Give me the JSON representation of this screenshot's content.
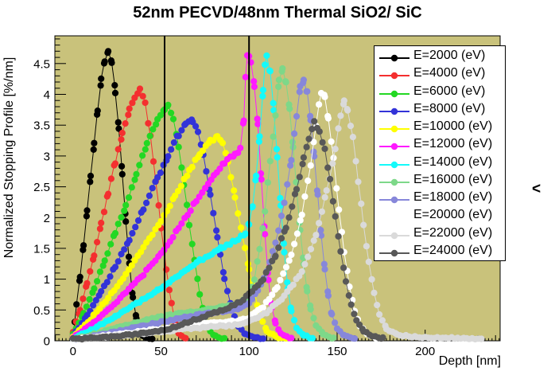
{
  "page": {
    "background": "#ffffff"
  },
  "title": "52nm PECVD/48nm Thermal SiO2/ SiC",
  "side_glyph": "<",
  "chart_data": {
    "type": "line",
    "title": "52nm PECVD/48nm Thermal SiO2/ SiC",
    "xlabel": "Depth [nm]",
    "ylabel": "Normalized Stopping Profile [%/nm]",
    "xlim": [
      -10.3,
      242.6
    ],
    "ylim": [
      0,
      4.95
    ],
    "x_major_ticks": [
      0,
      50,
      100,
      150,
      200
    ],
    "y_major_ticks": [
      0,
      0.5,
      1,
      1.5,
      2,
      2.5,
      3,
      3.5,
      4,
      4.5
    ],
    "x_minor_step": 10,
    "x_fine_step": 2,
    "y_minor_step": 0.1,
    "grid": false,
    "plot_bg": "#c9c27b",
    "frame_color": "#000000",
    "legend_position": "top-right",
    "marker": "filled-circle",
    "marker_diameter_px": 8,
    "vertical_lines": [
      52,
      100
    ],
    "series": [
      {
        "name": "E=2000 (eV)",
        "energy_eV": 2000,
        "color": "#000000",
        "points": [
          [
            0,
            0.05
          ],
          [
            1,
            0.3
          ],
          [
            2,
            0.6
          ],
          [
            4,
            1.05
          ],
          [
            6,
            1.55
          ],
          [
            8,
            2.1
          ],
          [
            10,
            2.65
          ],
          [
            12,
            3.2
          ],
          [
            14,
            3.75
          ],
          [
            16,
            4.25
          ],
          [
            18,
            4.55
          ],
          [
            20,
            4.72
          ],
          [
            22,
            4.5
          ],
          [
            24,
            4.05
          ],
          [
            26,
            3.45
          ],
          [
            28,
            2.7
          ],
          [
            30,
            1.95
          ],
          [
            32,
            1.25
          ],
          [
            34,
            0.7
          ],
          [
            36,
            0.35
          ],
          [
            38,
            0.15
          ],
          [
            40,
            0.07
          ],
          [
            45,
            0.03
          ]
        ]
      },
      {
        "name": "E=4000 (eV)",
        "energy_eV": 4000,
        "color": "#f42f2f",
        "points": [
          [
            0,
            0.15
          ],
          [
            4,
            0.5
          ],
          [
            8,
            0.95
          ],
          [
            12,
            1.4
          ],
          [
            16,
            1.9
          ],
          [
            20,
            2.4
          ],
          [
            24,
            2.9
          ],
          [
            28,
            3.35
          ],
          [
            32,
            3.75
          ],
          [
            35,
            3.95
          ],
          [
            38,
            4.06
          ],
          [
            41,
            3.85
          ],
          [
            44,
            3.3
          ],
          [
            47,
            2.6
          ],
          [
            50,
            1.85
          ],
          [
            53,
            1.15
          ],
          [
            56,
            0.6
          ],
          [
            58,
            0.3
          ],
          [
            60,
            0.12
          ],
          [
            64,
            0.04
          ]
        ]
      },
      {
        "name": "E=6000 (eV)",
        "energy_eV": 6000,
        "color": "#23d823",
        "points": [
          [
            0,
            0.1
          ],
          [
            6,
            0.45
          ],
          [
            12,
            0.85
          ],
          [
            18,
            1.3
          ],
          [
            24,
            1.75
          ],
          [
            30,
            2.2
          ],
          [
            36,
            2.7
          ],
          [
            42,
            3.2
          ],
          [
            48,
            3.6
          ],
          [
            52,
            3.76
          ],
          [
            54,
            3.8
          ],
          [
            57,
            3.6
          ],
          [
            60,
            3.15
          ],
          [
            63,
            2.55
          ],
          [
            66,
            1.9
          ],
          [
            69,
            1.3
          ],
          [
            72,
            0.75
          ],
          [
            75,
            0.38
          ],
          [
            78,
            0.16
          ],
          [
            81,
            0.07
          ],
          [
            86,
            0.03
          ]
        ]
      },
      {
        "name": "E=8000 (eV)",
        "energy_eV": 8000,
        "color": "#3333d8",
        "points": [
          [
            0,
            0.08
          ],
          [
            8,
            0.4
          ],
          [
            16,
            0.8
          ],
          [
            24,
            1.2
          ],
          [
            32,
            1.65
          ],
          [
            40,
            2.15
          ],
          [
            48,
            2.65
          ],
          [
            54,
            3.0
          ],
          [
            60,
            3.35
          ],
          [
            64,
            3.52
          ],
          [
            68,
            3.58
          ],
          [
            71,
            3.42
          ],
          [
            74,
            3.0
          ],
          [
            78,
            2.38
          ],
          [
            82,
            1.68
          ],
          [
            86,
            1.02
          ],
          [
            90,
            0.52
          ],
          [
            94,
            0.24
          ],
          [
            98,
            0.1
          ],
          [
            103,
            0.05
          ],
          [
            108,
            0.03
          ]
        ]
      },
      {
        "name": "E=10000 (eV)",
        "energy_eV": 10000,
        "color": "#ffff00",
        "points": [
          [
            0,
            0.06
          ],
          [
            10,
            0.35
          ],
          [
            20,
            0.7
          ],
          [
            30,
            1.08
          ],
          [
            40,
            1.5
          ],
          [
            50,
            1.95
          ],
          [
            58,
            2.35
          ],
          [
            66,
            2.75
          ],
          [
            72,
            3.05
          ],
          [
            78,
            3.25
          ],
          [
            82,
            3.32
          ],
          [
            85,
            3.2
          ],
          [
            88,
            2.9
          ],
          [
            92,
            2.35
          ],
          [
            96,
            1.72
          ],
          [
            100,
            1.18
          ],
          [
            103,
            0.78
          ],
          [
            106,
            0.42
          ],
          [
            110,
            0.16
          ],
          [
            115,
            0.07
          ],
          [
            121,
            0.03
          ]
        ]
      },
      {
        "name": "E=12000 (eV)",
        "energy_eV": 12000,
        "color": "#ff1aff",
        "points": [
          [
            0,
            0.05
          ],
          [
            10,
            0.25
          ],
          [
            20,
            0.5
          ],
          [
            30,
            0.78
          ],
          [
            40,
            1.08
          ],
          [
            50,
            1.42
          ],
          [
            60,
            1.82
          ],
          [
            70,
            2.28
          ],
          [
            80,
            2.7
          ],
          [
            86,
            2.9
          ],
          [
            92,
            3.02
          ],
          [
            95,
            3.12
          ],
          [
            97,
            3.6
          ],
          [
            98,
            4.3
          ],
          [
            99,
            4.66
          ],
          [
            100,
            4.62
          ],
          [
            101,
            4.5
          ],
          [
            103,
            4.15
          ],
          [
            105,
            3.5
          ],
          [
            107,
            2.6
          ],
          [
            109,
            1.72
          ],
          [
            111,
            1.0
          ],
          [
            113,
            0.55
          ],
          [
            115,
            0.28
          ],
          [
            118,
            0.12
          ],
          [
            124,
            0.04
          ]
        ]
      },
      {
        "name": "E=14000 (eV)",
        "energy_eV": 14000,
        "color": "#14fafa",
        "points": [
          [
            0,
            0.04
          ],
          [
            12,
            0.2
          ],
          [
            24,
            0.4
          ],
          [
            36,
            0.6
          ],
          [
            48,
            0.82
          ],
          [
            60,
            1.05
          ],
          [
            72,
            1.3
          ],
          [
            84,
            1.5
          ],
          [
            92,
            1.62
          ],
          [
            98,
            1.75
          ],
          [
            100,
            1.9
          ],
          [
            102,
            2.2
          ],
          [
            104,
            2.7
          ],
          [
            106,
            3.3
          ],
          [
            108,
            4.1
          ],
          [
            109,
            4.5
          ],
          [
            110,
            4.62
          ],
          [
            112,
            4.35
          ],
          [
            114,
            3.75
          ],
          [
            116,
            3.0
          ],
          [
            118,
            2.2
          ],
          [
            120,
            1.45
          ],
          [
            122,
            0.85
          ],
          [
            124,
            0.48
          ],
          [
            127,
            0.22
          ],
          [
            131,
            0.09
          ],
          [
            136,
            0.03
          ]
        ]
      },
      {
        "name": "E=16000 (eV)",
        "energy_eV": 16000,
        "color": "#7dd889",
        "points": [
          [
            0,
            0.03
          ],
          [
            15,
            0.13
          ],
          [
            30,
            0.25
          ],
          [
            45,
            0.36
          ],
          [
            60,
            0.44
          ],
          [
            75,
            0.5
          ],
          [
            85,
            0.55
          ],
          [
            95,
            0.62
          ],
          [
            100,
            0.72
          ],
          [
            103,
            1.0
          ],
          [
            106,
            1.5
          ],
          [
            109,
            2.1
          ],
          [
            112,
            2.9
          ],
          [
            115,
            3.65
          ],
          [
            117,
            4.2
          ],
          [
            119,
            4.39
          ],
          [
            121,
            4.22
          ],
          [
            123,
            3.75
          ],
          [
            125,
            3.15
          ],
          [
            127,
            2.45
          ],
          [
            129,
            1.8
          ],
          [
            131,
            1.25
          ],
          [
            133,
            0.82
          ],
          [
            135,
            0.52
          ],
          [
            138,
            0.26
          ],
          [
            142,
            0.11
          ],
          [
            148,
            0.04
          ]
        ]
      },
      {
        "name": "E=18000 (eV)",
        "energy_eV": 18000,
        "color": "#8787da",
        "points": [
          [
            0,
            0.02
          ],
          [
            20,
            0.12
          ],
          [
            40,
            0.24
          ],
          [
            60,
            0.36
          ],
          [
            80,
            0.46
          ],
          [
            95,
            0.52
          ],
          [
            100,
            0.6
          ],
          [
            105,
            0.82
          ],
          [
            110,
            1.12
          ],
          [
            115,
            1.58
          ],
          [
            120,
            2.25
          ],
          [
            124,
            2.95
          ],
          [
            127,
            3.65
          ],
          [
            129,
            4.1
          ],
          [
            131,
            4.2
          ],
          [
            133,
            4.02
          ],
          [
            135,
            3.6
          ],
          [
            137,
            3.0
          ],
          [
            139,
            2.35
          ],
          [
            141,
            1.72
          ],
          [
            143,
            1.15
          ],
          [
            145,
            0.72
          ],
          [
            147,
            0.42
          ],
          [
            150,
            0.2
          ],
          [
            154,
            0.08
          ],
          [
            160,
            0.03
          ]
        ]
      },
      {
        "name": "E=20000 (eV)",
        "energy_eV": 20000,
        "color": "#ffffff",
        "points": [
          [
            0,
            0.02
          ],
          [
            25,
            0.1
          ],
          [
            50,
            0.19
          ],
          [
            75,
            0.28
          ],
          [
            95,
            0.33
          ],
          [
            100,
            0.38
          ],
          [
            108,
            0.55
          ],
          [
            116,
            0.88
          ],
          [
            124,
            1.38
          ],
          [
            130,
            2.05
          ],
          [
            135,
            2.85
          ],
          [
            138,
            3.5
          ],
          [
            141,
            4.05
          ],
          [
            143,
            3.95
          ],
          [
            145,
            3.62
          ],
          [
            148,
            2.95
          ],
          [
            151,
            2.15
          ],
          [
            154,
            1.45
          ],
          [
            157,
            0.88
          ],
          [
            160,
            0.48
          ],
          [
            163,
            0.24
          ],
          [
            167,
            0.11
          ],
          [
            172,
            0.04
          ]
        ]
      },
      {
        "name": "E=22000 (eV)",
        "energy_eV": 22000,
        "color": "#dadada",
        "points": [
          [
            0,
            0.02
          ],
          [
            25,
            0.08
          ],
          [
            50,
            0.15
          ],
          [
            75,
            0.22
          ],
          [
            95,
            0.26
          ],
          [
            100,
            0.31
          ],
          [
            110,
            0.46
          ],
          [
            120,
            0.72
          ],
          [
            130,
            1.12
          ],
          [
            138,
            1.72
          ],
          [
            144,
            2.42
          ],
          [
            149,
            3.1
          ],
          [
            152,
            3.68
          ],
          [
            154,
            3.87
          ],
          [
            156,
            3.74
          ],
          [
            159,
            3.3
          ],
          [
            162,
            2.6
          ],
          [
            165,
            1.9
          ],
          [
            168,
            1.28
          ],
          [
            171,
            0.78
          ],
          [
            174,
            0.42
          ],
          [
            178,
            0.2
          ],
          [
            184,
            0.1
          ],
          [
            195,
            0.06
          ],
          [
            210,
            0.05
          ],
          [
            225,
            0.04
          ],
          [
            232,
            0.03
          ]
        ]
      },
      {
        "name": "E=24000 (eV)",
        "energy_eV": 24000,
        "color": "#585858",
        "points": [
          [
            0,
            0.03
          ],
          [
            20,
            0.06
          ],
          [
            40,
            0.12
          ],
          [
            55,
            0.2
          ],
          [
            70,
            0.35
          ],
          [
            85,
            0.5
          ],
          [
            95,
            0.63
          ],
          [
            100,
            0.76
          ],
          [
            108,
            1.0
          ],
          [
            115,
            1.38
          ],
          [
            121,
            1.85
          ],
          [
            127,
            2.45
          ],
          [
            131,
            2.95
          ],
          [
            134,
            3.3
          ],
          [
            137,
            3.55
          ],
          [
            140,
            3.42
          ],
          [
            143,
            3.1
          ],
          [
            146,
            2.6
          ],
          [
            149,
            2.0
          ],
          [
            152,
            1.45
          ],
          [
            155,
            0.95
          ],
          [
            158,
            0.58
          ],
          [
            161,
            0.32
          ],
          [
            165,
            0.16
          ],
          [
            170,
            0.08
          ],
          [
            176,
            0.04
          ]
        ]
      }
    ]
  }
}
